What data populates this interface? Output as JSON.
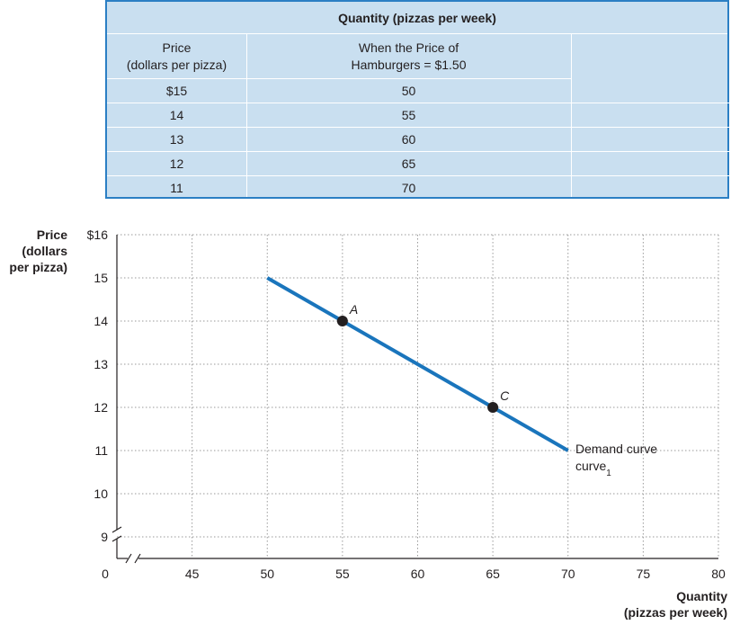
{
  "table": {
    "title": "Quantity (pizzas per week)",
    "col1_header": [
      "Price",
      "(dollars per pizza)"
    ],
    "col2_header": [
      "When the Price of",
      "Hamburgers = $1.50"
    ],
    "rows": [
      {
        "price": "$15",
        "quantity": "50"
      },
      {
        "price": "14",
        "quantity": "55"
      },
      {
        "price": "13",
        "quantity": "60"
      },
      {
        "price": "12",
        "quantity": "65"
      },
      {
        "price": "11",
        "quantity": "70"
      }
    ],
    "colors": {
      "background": "#c9dff0",
      "border": "#2b7fc4"
    }
  },
  "chart_data": {
    "type": "line",
    "ylabel": [
      "Price",
      "(dollars",
      "per pizza)"
    ],
    "xlabel": [
      "Quantity",
      "(pizzas per week)"
    ],
    "xlim": [
      40,
      80
    ],
    "ylim": [
      8.5,
      16
    ],
    "x_origin_label": "0",
    "x_ticks": [
      45,
      50,
      55,
      60,
      65,
      70,
      75,
      80
    ],
    "x_tick_labels": [
      "45",
      "50",
      "55",
      "60",
      "65",
      "70",
      "75",
      "80"
    ],
    "y_ticks": [
      9,
      10,
      11,
      12,
      13,
      14,
      15,
      16
    ],
    "y_tick_labels": [
      "9",
      "10",
      "11",
      "12",
      "13",
      "14",
      "15",
      "$16"
    ],
    "axis_breaks": true,
    "grid": true,
    "series": [
      {
        "name": "Demand curve",
        "name_subscript": "1",
        "color": "#1a75bc",
        "x": [
          50,
          55,
          60,
          65,
          70
        ],
        "y": [
          15,
          14,
          13,
          12,
          11
        ]
      }
    ],
    "points": [
      {
        "label": "A",
        "x": 55,
        "y": 14
      },
      {
        "label": "C",
        "x": 65,
        "y": 12
      }
    ]
  }
}
